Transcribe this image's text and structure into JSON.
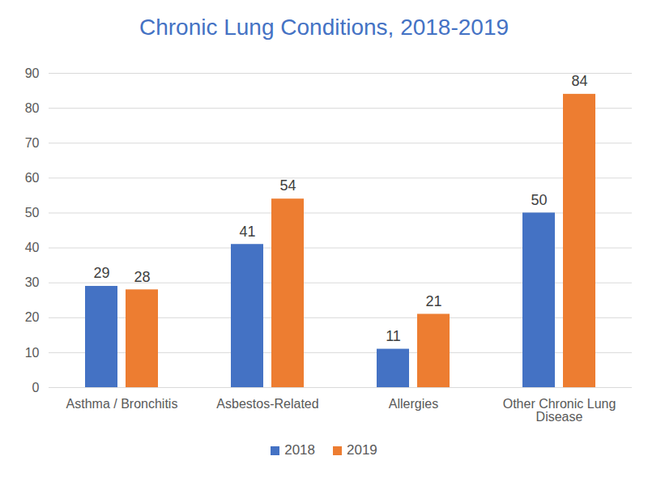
{
  "chart_data": {
    "type": "bar",
    "title": "Chronic Lung Conditions, 2018-2019",
    "categories": [
      "Asthma / Bronchitis",
      "Asbestos-Related",
      "Allergies",
      "Other Chronic Lung Disease"
    ],
    "series": [
      {
        "name": "2018",
        "color": "#4472c4",
        "values": [
          29,
          41,
          11,
          50
        ]
      },
      {
        "name": "2019",
        "color": "#ed7d31",
        "values": [
          28,
          54,
          21,
          84
        ]
      }
    ],
    "ylim": [
      0,
      90
    ],
    "yticks": [
      0,
      10,
      20,
      30,
      40,
      50,
      60,
      70,
      80,
      90
    ],
    "grid": true,
    "data_labels": true,
    "legend": "bottom"
  }
}
